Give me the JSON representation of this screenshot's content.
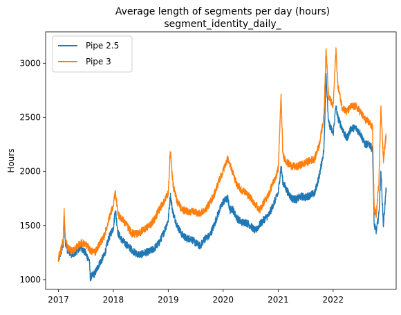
{
  "chart_data": {
    "type": "line",
    "title": "Average length of segments per day (hours)",
    "subtitle": "segment_identity_daily_",
    "xlabel": "",
    "ylabel": "Hours",
    "xlim": [
      "2016-10-08",
      "2023-02-24"
    ],
    "ylim": [
      910,
      3290
    ],
    "x_ticks": [
      {
        "date": "2017-01-01",
        "label": "2017"
      },
      {
        "date": "2018-01-01",
        "label": "2018"
      },
      {
        "date": "2019-01-01",
        "label": "2019"
      },
      {
        "date": "2020-01-01",
        "label": "2020"
      },
      {
        "date": "2021-01-01",
        "label": "2021"
      },
      {
        "date": "2022-01-01",
        "label": "2022"
      }
    ],
    "y_ticks": [
      1000,
      1500,
      2000,
      2500,
      3000
    ],
    "grid": false,
    "legend_position": "upper-left",
    "series": [
      {
        "name": "Pipe 2.5",
        "color": "#1f77b4",
        "points": [
          [
            "2017-01-01",
            1180
          ],
          [
            "2017-01-15",
            1240
          ],
          [
            "2017-02-01",
            1320
          ],
          [
            "2017-02-08",
            1590
          ],
          [
            "2017-02-15",
            1350
          ],
          [
            "2017-03-01",
            1280
          ],
          [
            "2017-04-01",
            1230
          ],
          [
            "2017-05-01",
            1260
          ],
          [
            "2017-06-01",
            1300
          ],
          [
            "2017-07-01",
            1240
          ],
          [
            "2017-07-25",
            1180
          ],
          [
            "2017-08-01",
            1020
          ],
          [
            "2017-09-01",
            1060
          ],
          [
            "2017-10-01",
            1150
          ],
          [
            "2017-11-01",
            1220
          ],
          [
            "2017-12-01",
            1380
          ],
          [
            "2018-01-01",
            1480
          ],
          [
            "2018-01-15",
            1650
          ],
          [
            "2018-02-01",
            1430
          ],
          [
            "2018-03-01",
            1360
          ],
          [
            "2018-04-01",
            1320
          ],
          [
            "2018-05-01",
            1280
          ],
          [
            "2018-06-01",
            1240
          ],
          [
            "2018-07-01",
            1230
          ],
          [
            "2018-08-01",
            1250
          ],
          [
            "2018-09-01",
            1260
          ],
          [
            "2018-10-01",
            1290
          ],
          [
            "2018-11-01",
            1340
          ],
          [
            "2018-12-01",
            1430
          ],
          [
            "2019-01-01",
            1550
          ],
          [
            "2019-01-15",
            1780
          ],
          [
            "2019-02-01",
            1620
          ],
          [
            "2019-03-01",
            1500
          ],
          [
            "2019-04-01",
            1420
          ],
          [
            "2019-05-01",
            1380
          ],
          [
            "2019-06-01",
            1380
          ],
          [
            "2019-07-01",
            1340
          ],
          [
            "2019-08-01",
            1310
          ],
          [
            "2019-09-01",
            1380
          ],
          [
            "2019-10-01",
            1400
          ],
          [
            "2019-11-01",
            1500
          ],
          [
            "2019-12-01",
            1620
          ],
          [
            "2020-01-01",
            1720
          ],
          [
            "2020-02-01",
            1750
          ],
          [
            "2020-02-15",
            1640
          ],
          [
            "2020-03-01",
            1660
          ],
          [
            "2020-04-01",
            1570
          ],
          [
            "2020-05-01",
            1530
          ],
          [
            "2020-06-01",
            1530
          ],
          [
            "2020-07-01",
            1500
          ],
          [
            "2020-08-01",
            1450
          ],
          [
            "2020-09-01",
            1510
          ],
          [
            "2020-10-01",
            1560
          ],
          [
            "2020-11-01",
            1600
          ],
          [
            "2020-12-01",
            1700
          ],
          [
            "2021-01-01",
            1800
          ],
          [
            "2021-01-20",
            2050
          ],
          [
            "2021-02-01",
            1900
          ],
          [
            "2021-03-01",
            1820
          ],
          [
            "2021-04-01",
            1750
          ],
          [
            "2021-05-01",
            1740
          ],
          [
            "2021-06-01",
            1770
          ],
          [
            "2021-07-01",
            1760
          ],
          [
            "2021-08-01",
            1780
          ],
          [
            "2021-09-01",
            1800
          ],
          [
            "2021-10-01",
            1960
          ],
          [
            "2021-11-01",
            2200
          ],
          [
            "2021-11-15",
            2900
          ],
          [
            "2021-12-01",
            2450
          ],
          [
            "2022-01-01",
            2350
          ],
          [
            "2022-01-20",
            2600
          ],
          [
            "2022-02-01",
            2500
          ],
          [
            "2022-03-01",
            2400
          ],
          [
            "2022-04-01",
            2300
          ],
          [
            "2022-05-01",
            2400
          ],
          [
            "2022-06-01",
            2400
          ],
          [
            "2022-07-01",
            2350
          ],
          [
            "2022-08-01",
            2250
          ],
          [
            "2022-09-01",
            2250
          ],
          [
            "2022-09-20",
            2200
          ],
          [
            "2022-10-01",
            1500
          ],
          [
            "2022-10-15",
            1450
          ],
          [
            "2022-11-01",
            1600
          ],
          [
            "2022-11-15",
            2000
          ],
          [
            "2022-12-01",
            1500
          ],
          [
            "2022-12-20",
            1850
          ]
        ]
      },
      {
        "name": "Pipe 3",
        "color": "#ff7f0e",
        "points": [
          [
            "2017-01-01",
            1200
          ],
          [
            "2017-01-15",
            1260
          ],
          [
            "2017-02-01",
            1360
          ],
          [
            "2017-02-08",
            1630
          ],
          [
            "2017-02-15",
            1400
          ],
          [
            "2017-03-01",
            1300
          ],
          [
            "2017-04-01",
            1260
          ],
          [
            "2017-05-01",
            1300
          ],
          [
            "2017-06-01",
            1340
          ],
          [
            "2017-07-01",
            1330
          ],
          [
            "2017-08-01",
            1270
          ],
          [
            "2017-09-01",
            1250
          ],
          [
            "2017-10-01",
            1330
          ],
          [
            "2017-11-01",
            1400
          ],
          [
            "2017-12-01",
            1560
          ],
          [
            "2018-01-01",
            1680
          ],
          [
            "2018-01-15",
            1820
          ],
          [
            "2018-02-01",
            1600
          ],
          [
            "2018-03-01",
            1560
          ],
          [
            "2018-04-01",
            1500
          ],
          [
            "2018-05-01",
            1430
          ],
          [
            "2018-06-01",
            1420
          ],
          [
            "2018-07-01",
            1440
          ],
          [
            "2018-08-01",
            1470
          ],
          [
            "2018-09-01",
            1500
          ],
          [
            "2018-10-01",
            1560
          ],
          [
            "2018-11-01",
            1640
          ],
          [
            "2018-12-01",
            1720
          ],
          [
            "2019-01-01",
            1800
          ],
          [
            "2019-01-15",
            2200
          ],
          [
            "2019-02-01",
            1880
          ],
          [
            "2019-03-01",
            1720
          ],
          [
            "2019-04-01",
            1650
          ],
          [
            "2019-05-01",
            1630
          ],
          [
            "2019-06-01",
            1630
          ],
          [
            "2019-07-01",
            1620
          ],
          [
            "2019-08-01",
            1610
          ],
          [
            "2019-09-01",
            1640
          ],
          [
            "2019-10-01",
            1700
          ],
          [
            "2019-11-01",
            1780
          ],
          [
            "2019-12-01",
            1900
          ],
          [
            "2020-01-01",
            2000
          ],
          [
            "2020-02-01",
            2120
          ],
          [
            "2020-03-01",
            2000
          ],
          [
            "2020-04-01",
            1880
          ],
          [
            "2020-05-01",
            1830
          ],
          [
            "2020-06-01",
            1800
          ],
          [
            "2020-07-01",
            1760
          ],
          [
            "2020-08-01",
            1700
          ],
          [
            "2020-09-01",
            1640
          ],
          [
            "2020-10-01",
            1720
          ],
          [
            "2020-11-01",
            1800
          ],
          [
            "2020-12-01",
            1900
          ],
          [
            "2021-01-01",
            2020
          ],
          [
            "2021-01-20",
            2700
          ],
          [
            "2021-02-01",
            2150
          ],
          [
            "2021-03-01",
            2080
          ],
          [
            "2021-04-01",
            2050
          ],
          [
            "2021-05-01",
            2040
          ],
          [
            "2021-06-01",
            2060
          ],
          [
            "2021-07-01",
            2080
          ],
          [
            "2021-08-01",
            2100
          ],
          [
            "2021-09-01",
            2120
          ],
          [
            "2021-10-01",
            2250
          ],
          [
            "2021-11-01",
            2500
          ],
          [
            "2021-11-15",
            3150
          ],
          [
            "2021-12-01",
            2700
          ],
          [
            "2022-01-01",
            2600
          ],
          [
            "2022-01-20",
            3130
          ],
          [
            "2022-02-01",
            2800
          ],
          [
            "2022-03-01",
            2600
          ],
          [
            "2022-04-01",
            2550
          ],
          [
            "2022-05-01",
            2600
          ],
          [
            "2022-06-01",
            2600
          ],
          [
            "2022-07-01",
            2550
          ],
          [
            "2022-08-01",
            2480
          ],
          [
            "2022-09-01",
            2450
          ],
          [
            "2022-09-20",
            2400
          ],
          [
            "2022-10-01",
            1650
          ],
          [
            "2022-10-15",
            1600
          ],
          [
            "2022-11-01",
            1900
          ],
          [
            "2022-11-15",
            2600
          ],
          [
            "2022-12-01",
            2100
          ],
          [
            "2022-12-20",
            2350
          ]
        ]
      }
    ]
  }
}
